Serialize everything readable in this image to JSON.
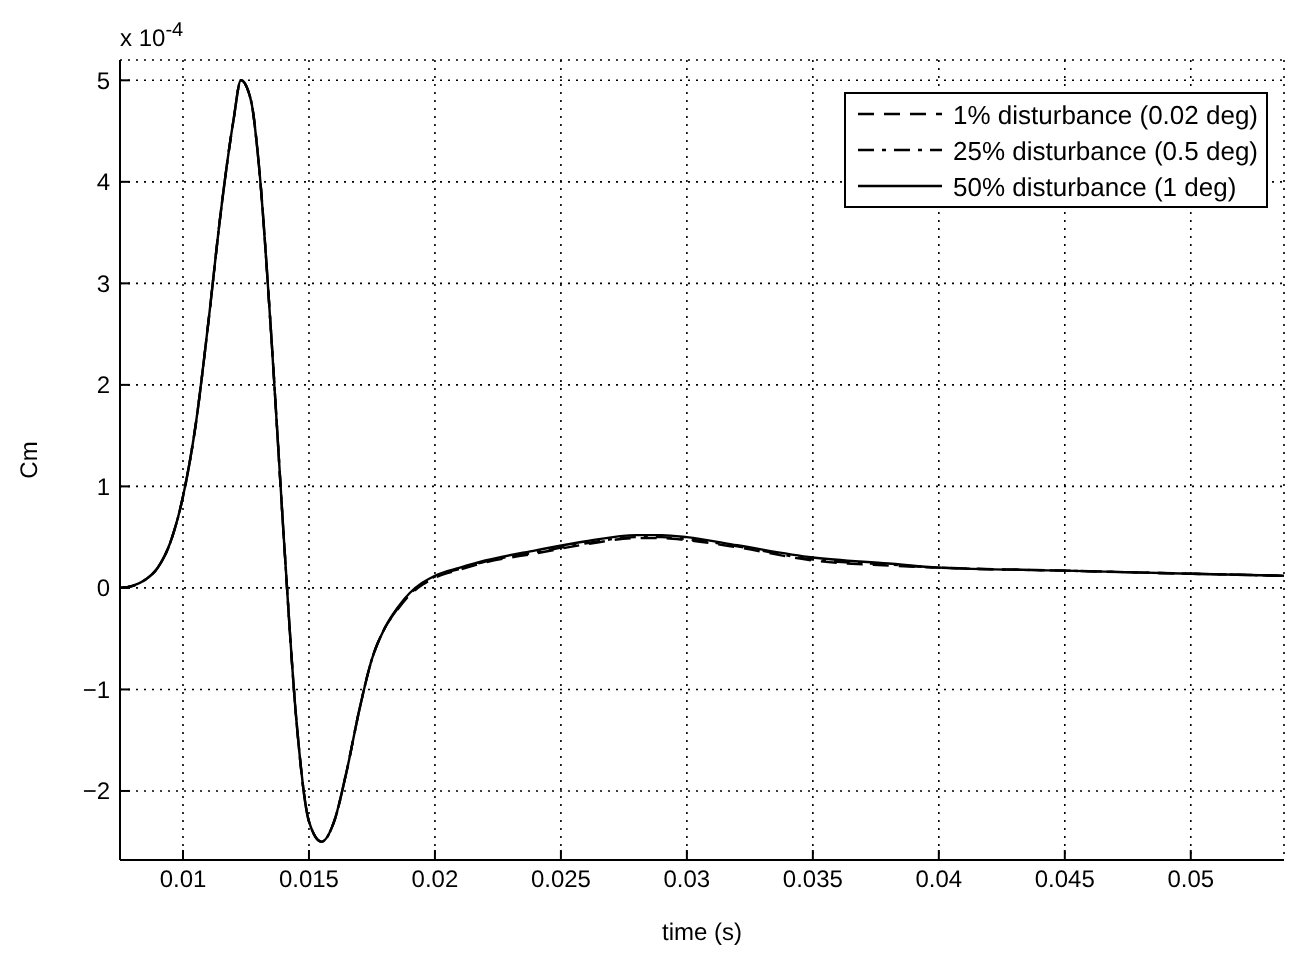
{
  "chart_data": {
    "type": "line",
    "xlabel": "time (s)",
    "ylabel": "Cm",
    "annotations": [
      "x 10$^{-4}$"
    ],
    "x": [
      0.0075,
      0.008,
      0.0085,
      0.009,
      0.0095,
      0.01,
      0.0105,
      0.011,
      0.0115,
      0.012,
      0.0123,
      0.0127,
      0.013,
      0.0135,
      0.014,
      0.0145,
      0.015,
      0.0155,
      0.016,
      0.0165,
      0.017,
      0.0175,
      0.018,
      0.0185,
      0.019,
      0.0195,
      0.02,
      0.021,
      0.022,
      0.024,
      0.026,
      0.028,
      0.029,
      0.03,
      0.032,
      0.035,
      0.038,
      0.04,
      0.045,
      0.05,
      0.0537
    ],
    "series": [
      {
        "name": "1% disturbance (0.02 deg)",
        "color": "#000000",
        "line_style": "dashed",
        "values": [
          0,
          0.02,
          0.08,
          0.2,
          0.45,
          0.9,
          1.6,
          2.6,
          3.7,
          4.6,
          5.0,
          4.8,
          4.2,
          2.5,
          0.5,
          -1.3,
          -2.3,
          -2.5,
          -2.3,
          -1.8,
          -1.2,
          -0.7,
          -0.4,
          -0.22,
          -0.07,
          0.03,
          0.1,
          0.18,
          0.25,
          0.34,
          0.43,
          0.49,
          0.49,
          0.47,
          0.4,
          0.27,
          0.22,
          0.2,
          0.17,
          0.14,
          0.12
        ]
      },
      {
        "name": "25% disturbance (0.5 deg)",
        "color": "#000000",
        "line_style": "dashdot",
        "values": [
          0,
          0.02,
          0.08,
          0.2,
          0.45,
          0.9,
          1.6,
          2.6,
          3.7,
          4.6,
          5.0,
          4.8,
          4.2,
          2.5,
          0.5,
          -1.3,
          -2.3,
          -2.5,
          -2.3,
          -1.8,
          -1.2,
          -0.7,
          -0.4,
          -0.21,
          -0.06,
          0.04,
          0.11,
          0.19,
          0.26,
          0.35,
          0.44,
          0.5,
          0.5,
          0.48,
          0.41,
          0.28,
          0.23,
          0.2,
          0.17,
          0.14,
          0.12
        ]
      },
      {
        "name": "50% disturbance (1 deg)",
        "color": "#000000",
        "line_style": "solid",
        "values": [
          0,
          0.02,
          0.08,
          0.2,
          0.45,
          0.9,
          1.6,
          2.6,
          3.7,
          4.6,
          5.0,
          4.8,
          4.2,
          2.5,
          0.5,
          -1.3,
          -2.3,
          -2.5,
          -2.3,
          -1.8,
          -1.2,
          -0.7,
          -0.4,
          -0.2,
          -0.05,
          0.05,
          0.12,
          0.2,
          0.27,
          0.37,
          0.46,
          0.52,
          0.52,
          0.5,
          0.42,
          0.3,
          0.24,
          0.2,
          0.17,
          0.14,
          0.12
        ]
      }
    ],
    "xlim": [
      0.0075,
      0.0537
    ],
    "ylim": [
      -2.68,
      5.2
    ],
    "xticks": [
      0.01,
      0.015,
      0.02,
      0.025,
      0.03,
      0.035,
      0.04,
      0.045,
      0.05
    ],
    "yticks": [
      -2,
      -1,
      0,
      1,
      2,
      3,
      4,
      5
    ],
    "grid": true,
    "legend": "top right",
    "marker": "none"
  }
}
